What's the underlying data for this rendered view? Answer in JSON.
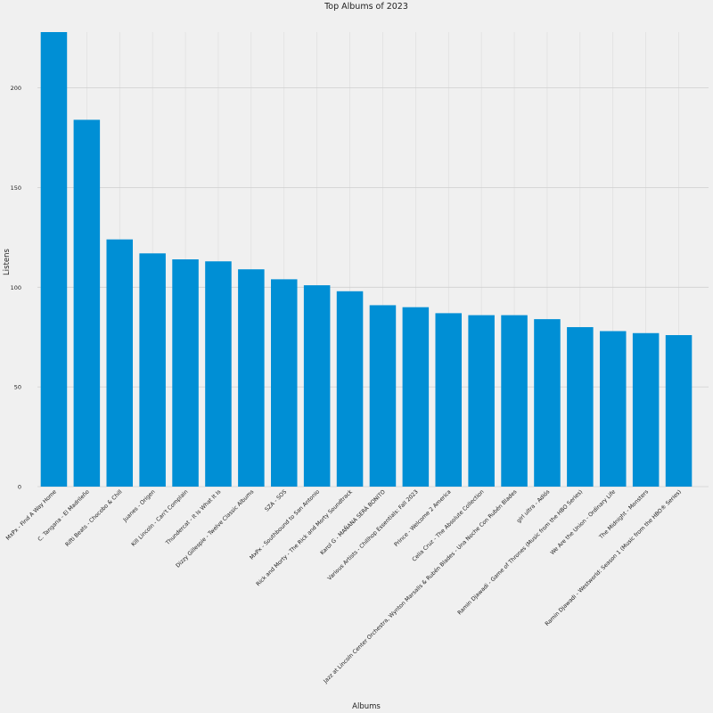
{
  "chart_data": {
    "type": "bar",
    "title": "Top Albums of 2023",
    "xlabel": "Albums",
    "ylabel": "Listens",
    "ylim": [
      0,
      228
    ],
    "yticks": [
      0,
      50,
      100,
      150,
      200
    ],
    "grid": true,
    "bar_color": "#008fd5",
    "background_color": "#f0f0f0",
    "categories": [
      "MxPx - Find A Way Home",
      "C. Tangana - El Madrileño",
      "Rifti Beats - Chocobo & Chill",
      "Juanes - Origen",
      "Kill Lincoln - Can't Complain",
      "Thundercat - It Is What It Is",
      "Dizzy Gillespie - Twelve Classic Albums",
      "SZA - SOS",
      "MxPx - Southbound to San Antonio",
      "Rick and Morty - The Rick and Morty Soundtrack",
      "Karol G - MAÑANA SERÁ BONITO",
      "Various Artists - Chillhop Essentials: Fall 2023",
      "Prince - Welcome 2 America",
      "Celia Cruz - The Absolute Collection",
      "Jazz at Lincoln Center Orchestra, Wynton Marsalis & Rubén Blades - Una Noche Con Rubén Blades",
      "girl ultra - Adiós",
      "Ramin Djawadi - Game of Thrones (Music from the HBO Series)",
      "We Are the Union - Ordinary Life",
      "The Midnight - Monsters",
      "Ramin Djawadi - Westworld: Season 1 (Music from the HBO® Series)"
    ],
    "values": [
      228,
      184,
      124,
      117,
      114,
      113,
      109,
      104,
      101,
      98,
      91,
      90,
      87,
      86,
      86,
      84,
      80,
      78,
      77,
      76
    ]
  }
}
